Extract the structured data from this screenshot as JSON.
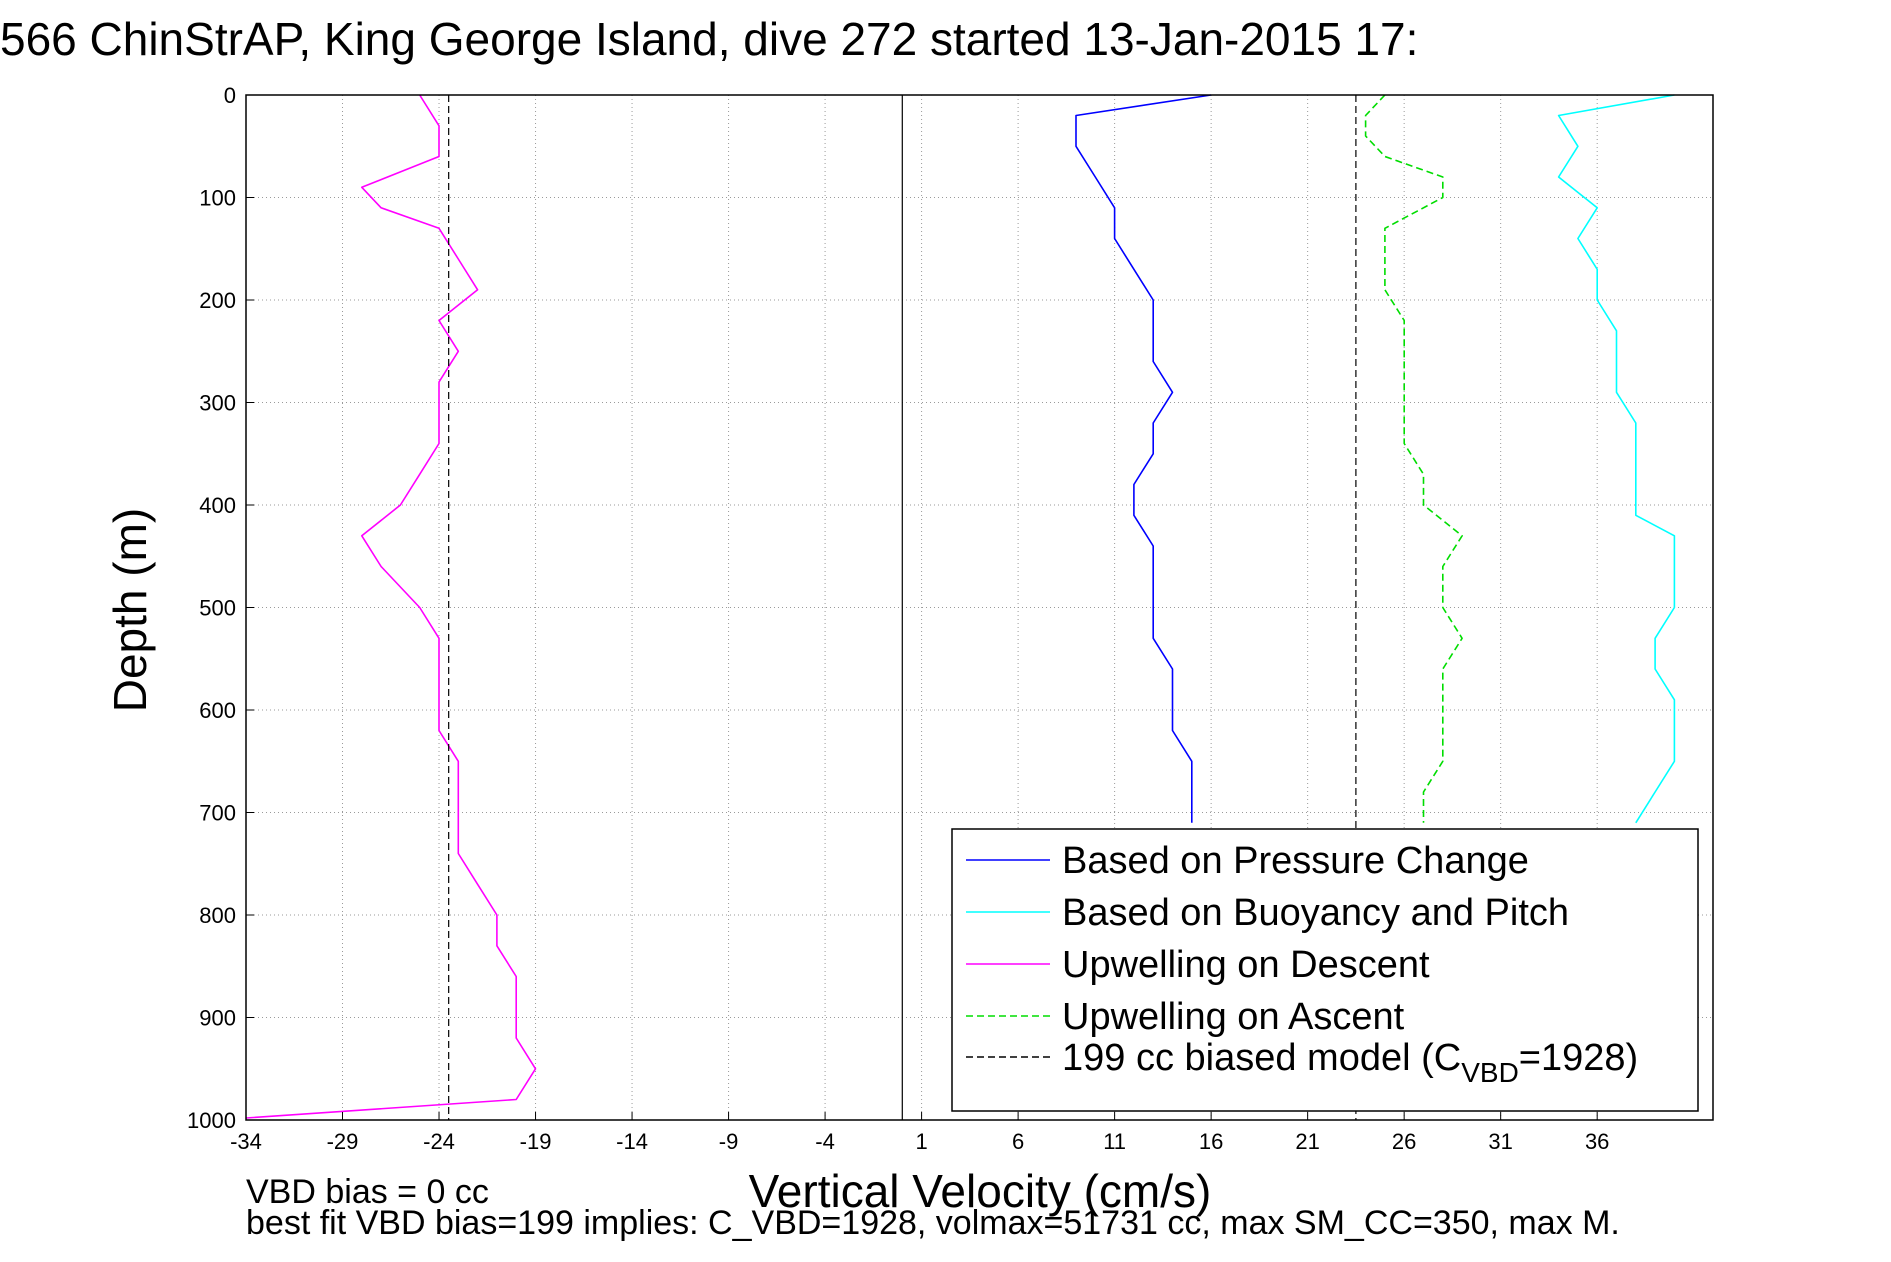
{
  "chart_data": {
    "type": "line",
    "title": "566 ChinStrAP, King George Island, dive 272 started 13-Jan-2015 17:",
    "xlabel": "Vertical Velocity (cm/s)",
    "ylabel": "Depth (m)",
    "xlim": [
      -34,
      42
    ],
    "ylim": [
      0,
      1000
    ],
    "y_reversed": true,
    "grid": true,
    "xticks": [
      -34,
      -29,
      -24,
      -19,
      -14,
      -9,
      -4,
      1,
      6,
      11,
      16,
      21,
      26,
      31,
      36
    ],
    "yticks": [
      0,
      100,
      200,
      300,
      400,
      500,
      600,
      700,
      800,
      900,
      1000
    ],
    "legend_position": "bottom-right",
    "series": [
      {
        "name": "Based on Pressure Change",
        "color": "#0000ff",
        "style": "solid",
        "points": [
          [
            16,
            0
          ],
          [
            9,
            20
          ],
          [
            9,
            50
          ],
          [
            10,
            80
          ],
          [
            11,
            110
          ],
          [
            11,
            140
          ],
          [
            12,
            170
          ],
          [
            13,
            200
          ],
          [
            13,
            230
          ],
          [
            13,
            260
          ],
          [
            14,
            290
          ],
          [
            13,
            320
          ],
          [
            13,
            350
          ],
          [
            12,
            380
          ],
          [
            12,
            410
          ],
          [
            13,
            440
          ],
          [
            13,
            470
          ],
          [
            13,
            500
          ],
          [
            13,
            530
          ],
          [
            14,
            560
          ],
          [
            14,
            590
          ],
          [
            14,
            620
          ],
          [
            15,
            650
          ],
          [
            15,
            680
          ],
          [
            15,
            710
          ]
        ]
      },
      {
        "name": "Based on Buoyancy and Pitch",
        "color": "#00ffff",
        "style": "solid",
        "points": [
          [
            40,
            0
          ],
          [
            34,
            20
          ],
          [
            35,
            50
          ],
          [
            34,
            80
          ],
          [
            36,
            110
          ],
          [
            35,
            140
          ],
          [
            36,
            170
          ],
          [
            36,
            200
          ],
          [
            37,
            230
          ],
          [
            37,
            260
          ],
          [
            37,
            290
          ],
          [
            38,
            320
          ],
          [
            38,
            350
          ],
          [
            38,
            380
          ],
          [
            38,
            410
          ],
          [
            40,
            430
          ],
          [
            40,
            460
          ],
          [
            40,
            500
          ],
          [
            39,
            530
          ],
          [
            39,
            560
          ],
          [
            40,
            590
          ],
          [
            40,
            620
          ],
          [
            40,
            650
          ],
          [
            39,
            680
          ],
          [
            38,
            710
          ]
        ]
      },
      {
        "name": "Upwelling on Descent",
        "color": "#ff00ff",
        "style": "solid",
        "points": [
          [
            -25,
            0
          ],
          [
            -24,
            30
          ],
          [
            -24,
            60
          ],
          [
            -28,
            90
          ],
          [
            -27,
            110
          ],
          [
            -24,
            130
          ],
          [
            -23,
            160
          ],
          [
            -22,
            190
          ],
          [
            -24,
            220
          ],
          [
            -23,
            250
          ],
          [
            -24,
            280
          ],
          [
            -24,
            310
          ],
          [
            -24,
            340
          ],
          [
            -25,
            370
          ],
          [
            -26,
            400
          ],
          [
            -28,
            430
          ],
          [
            -27,
            460
          ],
          [
            -25,
            500
          ],
          [
            -24,
            530
          ],
          [
            -24,
            560
          ],
          [
            -24,
            590
          ],
          [
            -24,
            620
          ],
          [
            -23,
            650
          ],
          [
            -23,
            680
          ],
          [
            -23,
            710
          ],
          [
            -23,
            740
          ],
          [
            -22,
            770
          ],
          [
            -21,
            800
          ],
          [
            -21,
            830
          ],
          [
            -20,
            860
          ],
          [
            -20,
            890
          ],
          [
            -20,
            920
          ],
          [
            -19,
            950
          ],
          [
            -20,
            980
          ],
          [
            -34,
            998
          ]
        ]
      },
      {
        "name": "Upwelling on Ascent",
        "color": "#00dd00",
        "style": "dashed",
        "points": [
          [
            25,
            0
          ],
          [
            24,
            20
          ],
          [
            24,
            40
          ],
          [
            25,
            60
          ],
          [
            28,
            80
          ],
          [
            28,
            100
          ],
          [
            25,
            130
          ],
          [
            25,
            160
          ],
          [
            25,
            190
          ],
          [
            26,
            220
          ],
          [
            26,
            250
          ],
          [
            26,
            280
          ],
          [
            26,
            310
          ],
          [
            26,
            340
          ],
          [
            27,
            370
          ],
          [
            27,
            400
          ],
          [
            29,
            430
          ],
          [
            28,
            460
          ],
          [
            28,
            500
          ],
          [
            29,
            530
          ],
          [
            28,
            560
          ],
          [
            28,
            590
          ],
          [
            28,
            620
          ],
          [
            28,
            650
          ],
          [
            27,
            680
          ],
          [
            27,
            710
          ]
        ]
      }
    ],
    "reference_lines": [
      {
        "name": "199 cc biased model (C_VBD=1928)",
        "color": "#000000",
        "style": "dashed",
        "x": [
          -23.5,
          23.5
        ]
      },
      {
        "color": "#000000",
        "style": "solid",
        "x": [
          0
        ]
      }
    ]
  },
  "legend": {
    "items": [
      {
        "label": "Based on Pressure Change",
        "color": "#0000ff",
        "dashed": false
      },
      {
        "label": "Based on Buoyancy and Pitch",
        "color": "#00ffff",
        "dashed": false
      },
      {
        "label": "Upwelling on Descent",
        "color": "#ff00ff",
        "dashed": false
      },
      {
        "label": "Upwelling on Ascent",
        "color": "#00dd00",
        "dashed": true
      }
    ],
    "model_label_main": "199 cc biased model (C",
    "model_label_sub": "VBD",
    "model_label_tail": "=1928)"
  },
  "notes": {
    "line1": "VBD bias = 0 cc",
    "line2": "best fit VBD bias=199 implies: C_VBD=1928, volmax=51731 cc, max SM_CC=350, max M."
  }
}
